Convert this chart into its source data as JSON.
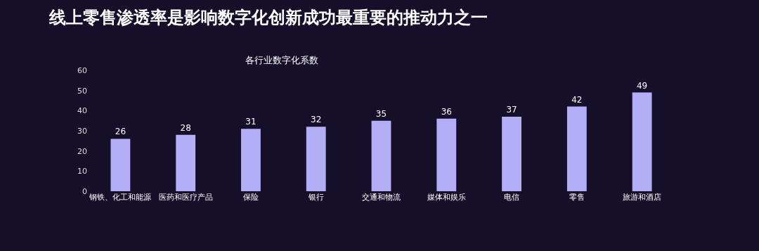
{
  "chart_data": {
    "type": "bar",
    "title": "线上零售渗透率是影响数字化创新成功最重要的推动力之一",
    "subtitle": "各行业数字化系数",
    "categories": [
      "钢铁、化工和能源",
      "医药和医疗产品",
      "保险",
      "银行",
      "交通和物流",
      "媒体和娱乐",
      "电信",
      "零售",
      "旅游和酒店"
    ],
    "values": [
      26,
      28,
      31,
      32,
      35,
      36,
      37,
      42,
      49
    ],
    "color": "#b3aef5",
    "ylim": [
      0,
      60
    ],
    "yticks": [
      0,
      10,
      20,
      30,
      40,
      50,
      60
    ],
    "grid": false,
    "data_labels": true
  }
}
